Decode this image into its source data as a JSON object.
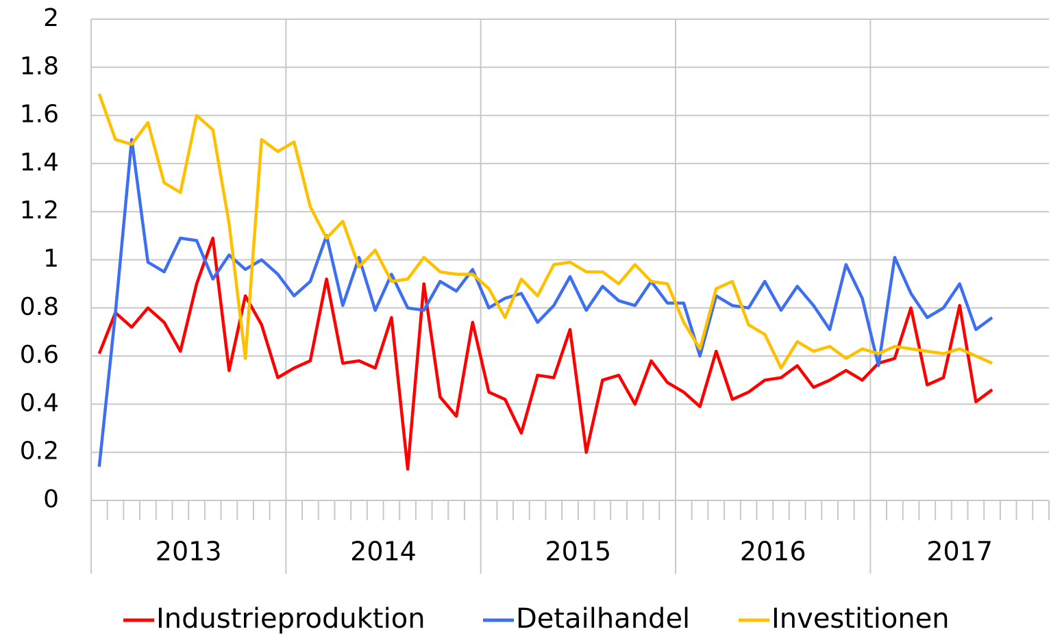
{
  "chart_data": {
    "type": "line",
    "categories": [
      null,
      null,
      null,
      null,
      null,
      null,
      null,
      null,
      null,
      null,
      null,
      null,
      null,
      null,
      null,
      null,
      null,
      null,
      null,
      null,
      null,
      null,
      null,
      null,
      null,
      null,
      null,
      null,
      null,
      null,
      null,
      null,
      null,
      null,
      null,
      null,
      null,
      null,
      null,
      null,
      null,
      null,
      null,
      null,
      null,
      null,
      null,
      null,
      null,
      null,
      null,
      null,
      null,
      null,
      null,
      null,
      null,
      null,
      null
    ],
    "groups": [
      {
        "label": "2013",
        "span": 12
      },
      {
        "label": "2014",
        "span": 12
      },
      {
        "label": "2015",
        "span": 12
      },
      {
        "label": "2016",
        "span": 12
      },
      {
        "label": "2017",
        "span": 11
      }
    ],
    "series": [
      {
        "name": "Industrieproduktion",
        "color": "#ff0000",
        "values": [
          0.61,
          0.78,
          0.72,
          0.8,
          0.74,
          0.62,
          0.9,
          1.09,
          0.54,
          0.85,
          0.73,
          0.51,
          0.55,
          0.58,
          0.92,
          0.57,
          0.58,
          0.55,
          0.76,
          0.13,
          0.9,
          0.43,
          0.35,
          0.74,
          0.45,
          0.42,
          0.28,
          0.52,
          0.51,
          0.71,
          0.2,
          0.5,
          0.52,
          0.4,
          0.58,
          0.49,
          0.45,
          0.39,
          0.62,
          0.42,
          0.45,
          0.5,
          0.51,
          0.56,
          0.47,
          0.5,
          0.54,
          0.5,
          0.57,
          0.59,
          0.8,
          0.48,
          0.51,
          0.81,
          0.41,
          0.46,
          null,
          null,
          null
        ]
      },
      {
        "name": "Detailhandel",
        "color": "#3d6ff0",
        "values": [
          0.14,
          0.78,
          1.5,
          0.99,
          0.95,
          1.09,
          1.08,
          0.92,
          1.02,
          0.96,
          1.0,
          0.94,
          0.85,
          0.91,
          1.1,
          0.81,
          1.01,
          0.79,
          0.94,
          0.8,
          0.79,
          0.91,
          0.87,
          0.96,
          0.8,
          0.84,
          0.86,
          0.74,
          0.81,
          0.93,
          0.79,
          0.89,
          0.83,
          0.81,
          0.91,
          0.82,
          0.82,
          0.6,
          0.85,
          0.81,
          0.8,
          0.91,
          0.79,
          0.89,
          0.81,
          0.71,
          0.98,
          0.84,
          0.56,
          1.01,
          0.86,
          0.76,
          0.8,
          0.9,
          0.71,
          0.76,
          null,
          null,
          null
        ]
      },
      {
        "name": "Investitionen",
        "color": "#ffc000",
        "values": [
          1.69,
          1.5,
          1.48,
          1.57,
          1.32,
          1.28,
          1.6,
          1.54,
          1.15,
          0.59,
          1.5,
          1.45,
          1.49,
          1.22,
          1.09,
          1.16,
          0.97,
          1.04,
          0.91,
          0.92,
          1.01,
          0.95,
          0.94,
          0.94,
          0.88,
          0.76,
          0.92,
          0.85,
          0.98,
          0.99,
          0.95,
          0.95,
          0.9,
          0.98,
          0.91,
          0.9,
          0.74,
          0.63,
          0.88,
          0.91,
          0.73,
          0.69,
          0.55,
          0.66,
          0.62,
          0.64,
          0.59,
          0.63,
          0.61,
          0.64,
          0.63,
          0.62,
          0.61,
          0.63,
          0.6,
          0.57,
          null,
          null,
          null
        ]
      }
    ],
    "ylim": [
      0,
      2
    ],
    "yticks": [
      0,
      {
        "value": 0.2,
        "label": "0.2"
      },
      {
        "value": 0.4,
        "label": "0.4"
      },
      {
        "value": 0.6,
        "label": "0.6"
      },
      {
        "value": 0.8,
        "label": "0.8"
      },
      1,
      {
        "value": 1.2,
        "label": "1.2"
      },
      {
        "value": 1.4,
        "label": "1.4"
      },
      {
        "value": 1.6,
        "label": "1.6"
      },
      {
        "value": 1.8,
        "label": "1.8"
      },
      2
    ],
    "grid": true,
    "legend": "bottom"
  }
}
